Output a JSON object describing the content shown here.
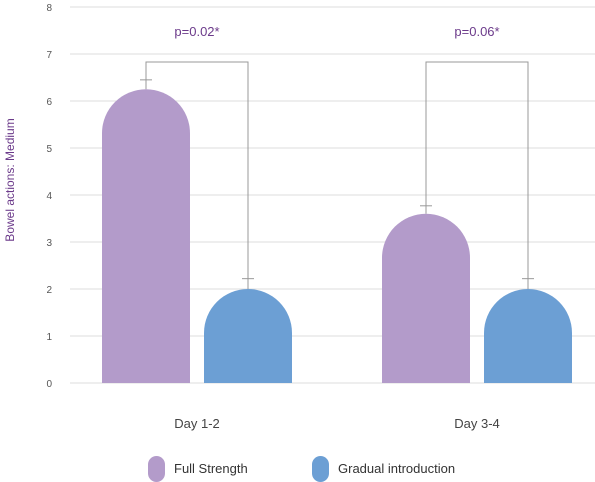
{
  "chart_data": {
    "type": "bar",
    "title": "",
    "xlabel": "",
    "ylabel": "Bowel actions: Medium",
    "ylim": [
      0,
      8
    ],
    "yticks": [
      0,
      1,
      2,
      3,
      4,
      5,
      6,
      7,
      8
    ],
    "grid": true,
    "legend_position": "bottom",
    "categories": [
      "Day 1-2",
      "Day 3-4"
    ],
    "series": [
      {
        "name": "Full Strength",
        "color": "#b39bca",
        "values": [
          6.25,
          3.6
        ],
        "error": [
          0.2,
          0.17
        ]
      },
      {
        "name": "Gradual introduction",
        "color": "#6c9fd4",
        "values": [
          2.0,
          2.0
        ],
        "error": [
          0.22,
          0.22
        ]
      }
    ],
    "annotations": [
      {
        "text": "p=0.02*",
        "category": "Day 1-2"
      },
      {
        "text": "p=0.06*",
        "category": "Day 3-4"
      }
    ],
    "colors": {
      "grid": "#dcdcdc",
      "text_accent": "#6b3a8a",
      "bracket": "#999999",
      "axis_text": "#555555"
    }
  }
}
